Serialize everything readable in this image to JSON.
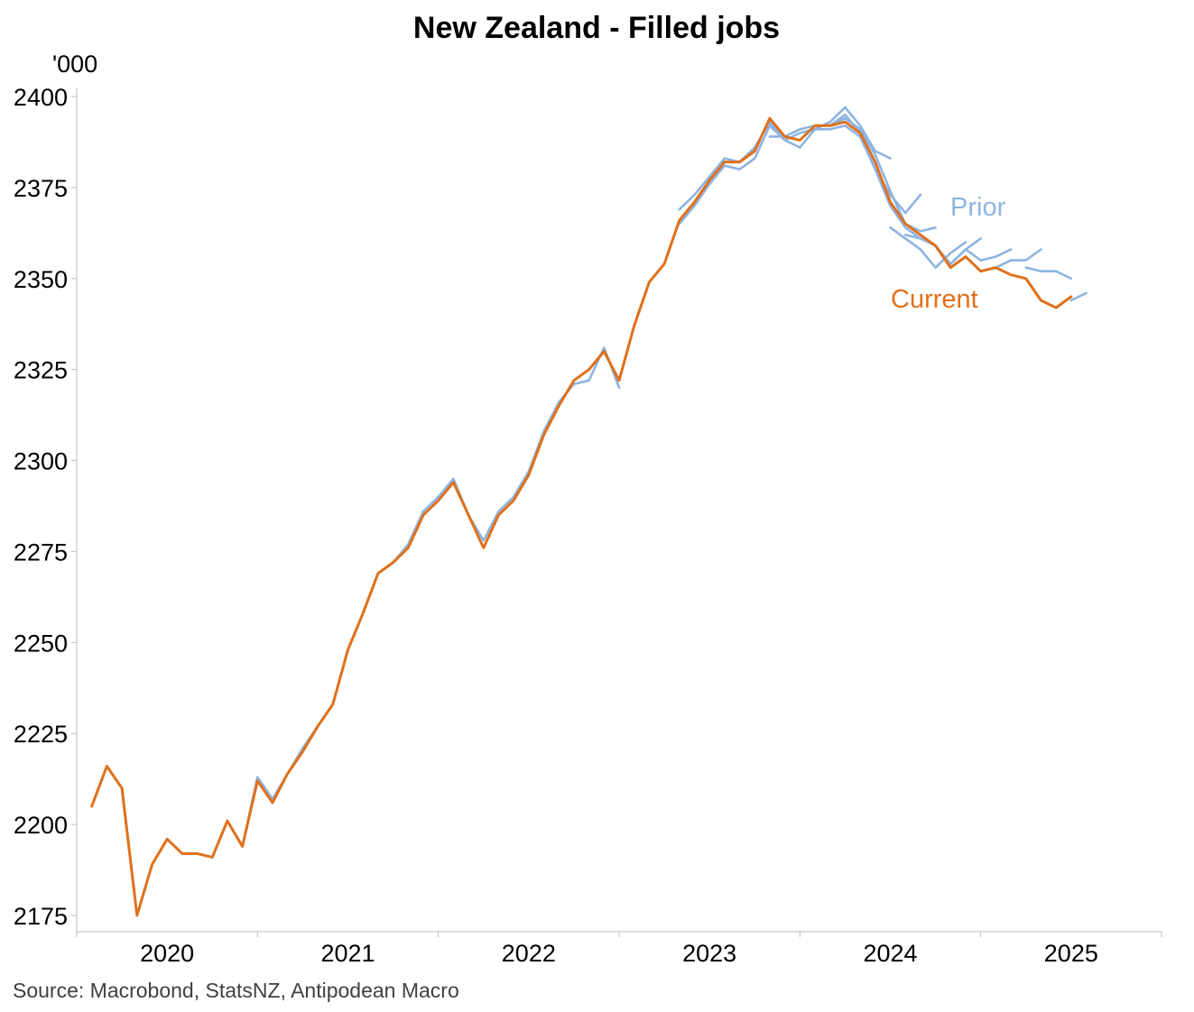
{
  "chart_data": {
    "type": "line",
    "title": "New Zealand - Filled jobs",
    "ylabel": "'000",
    "ylim": [
      2170,
      2405
    ],
    "yticks": [
      2175,
      2200,
      2225,
      2250,
      2275,
      2300,
      2325,
      2350,
      2375,
      2400
    ],
    "xlim": [
      "2019-07",
      "2025-07"
    ],
    "xticks": [
      "2020",
      "2021",
      "2022",
      "2023",
      "2024",
      "2025"
    ],
    "grid": false,
    "source": "Source: Macrobond, StatsNZ, Antipodean Macro",
    "colors": {
      "current": "#E0701A",
      "prior": "#8DB4E2"
    },
    "series": [
      {
        "name": "Current",
        "start": "2019-08",
        "frequency": "monthly",
        "values": [
          2205,
          2216,
          2210,
          2175,
          2189,
          2196,
          2192,
          2192,
          2191,
          2201,
          2194,
          2212,
          2206,
          2214,
          2220,
          2227,
          2233,
          2248,
          2258,
          2269,
          2272,
          2276,
          2285,
          2289,
          2294,
          2285,
          2276,
          2285,
          2289,
          2296,
          2307,
          2315,
          2322,
          2325,
          2330,
          2322,
          2337,
          2349,
          2354,
          2366,
          2371,
          2377,
          2382,
          2382,
          2385,
          2394,
          2389,
          2388,
          2392,
          2392,
          2393,
          2390,
          2382,
          2371,
          2365,
          2362,
          2359,
          2353,
          2356,
          2352,
          2353,
          2351,
          2350,
          2344,
          2342,
          2345
        ]
      },
      {
        "name": "Prior",
        "start": "2019-08",
        "frequency": "monthly",
        "vintages": [
          [
            2205,
            2216,
            2210,
            2175,
            2189,
            2196,
            2192,
            2192,
            2191,
            2201,
            2194,
            2213,
            2207,
            2214,
            2221,
            2227,
            2233,
            2248,
            2258,
            2269,
            2272,
            2277,
            2286,
            2290,
            2295,
            2285,
            2278,
            2286,
            2290,
            2297,
            2308,
            2316,
            2321,
            2322,
            2331,
            2320
          ],
          [
            2365,
            2370,
            2376,
            2381,
            2380,
            2383,
            2392,
            2388,
            2386,
            2391,
            2391,
            2392,
            2389,
            2380,
            2370,
            2364,
            2361
          ],
          [
            2369,
            2373,
            2378,
            2383,
            2382,
            2386,
            2393,
            2388,
            2390,
            2391,
            2393,
            2397,
            2392,
            2385,
            2383
          ],
          [
            2389,
            2389,
            2391,
            2392,
            2392,
            2395,
            2390,
            2380,
            2373,
            2368,
            2373
          ],
          [
            2392,
            2392,
            2394,
            2391,
            2384,
            2374,
            2365,
            2363,
            2364
          ],
          [
            2362,
            2361,
            2359,
            2354,
            2358,
            2355,
            2356,
            2358
          ],
          [
            2364,
            2361,
            2358,
            2353,
            2357,
            2360
          ],
          [
            2354,
            2358,
            2361
          ],
          [
            2353,
            2355,
            2355,
            2358
          ],
          [
            2353,
            2352,
            2352,
            2350
          ],
          [
            2344,
            2346
          ]
        ],
        "vintage_starts": [
          "2019-08",
          "2022-11",
          "2022-11",
          "2023-05",
          "2023-08",
          "2024-02",
          "2024-01",
          "2024-05",
          "2024-08",
          "2024-10",
          "2025-01"
        ]
      }
    ],
    "annotations": [
      {
        "text": "Prior",
        "color": "#8DB4E2"
      },
      {
        "text": "Current",
        "color": "#E0701A"
      }
    ]
  }
}
